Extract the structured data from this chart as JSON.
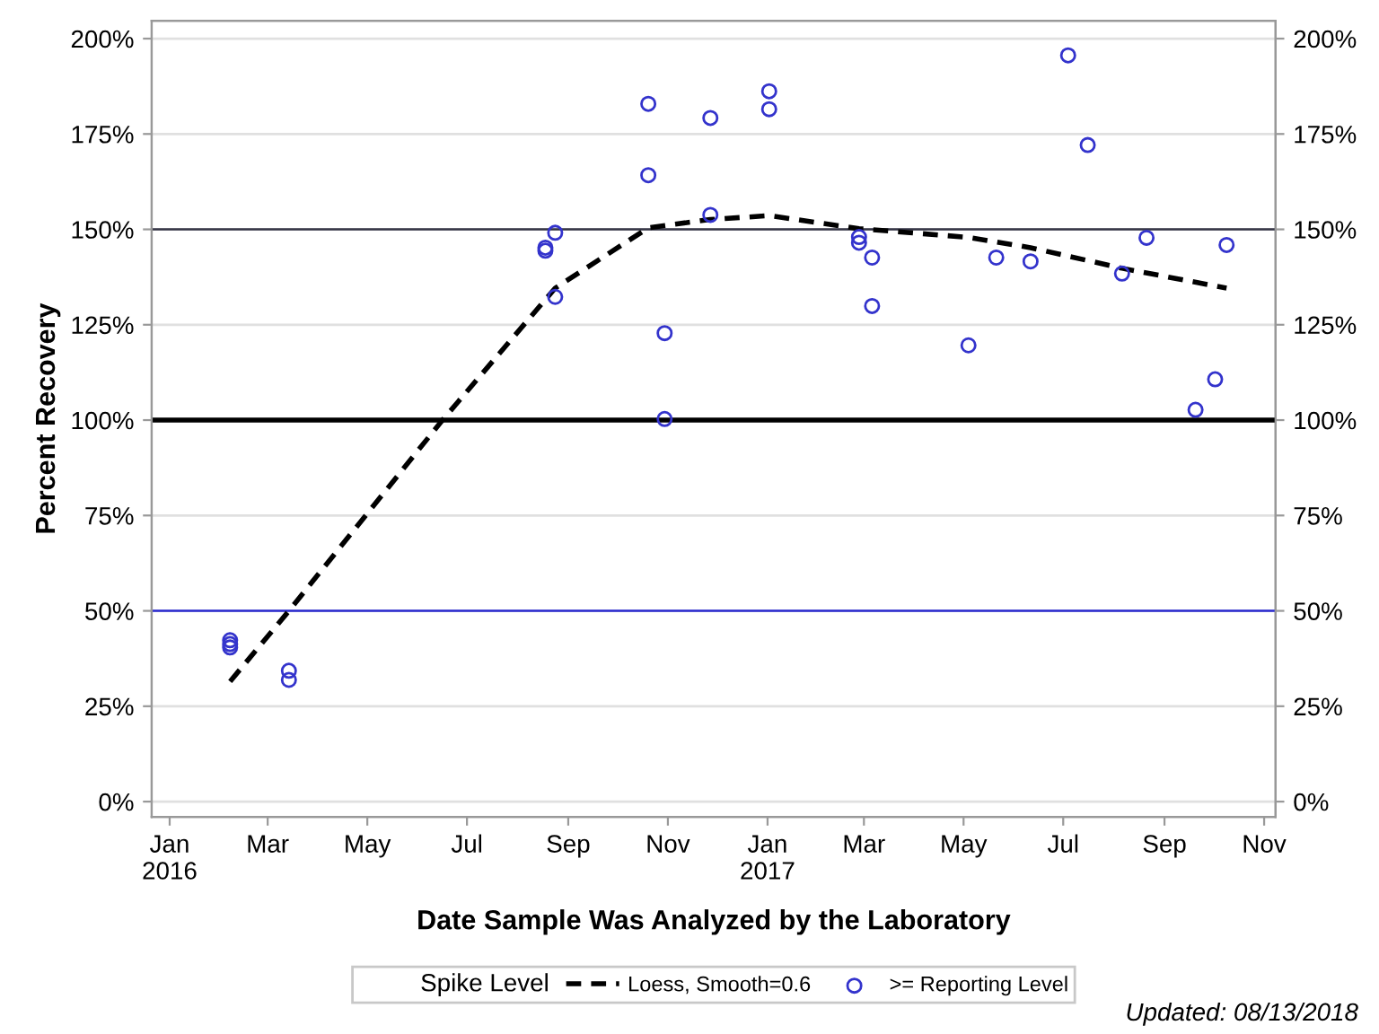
{
  "chart_data": {
    "type": "scatter",
    "xlabel": "Date Sample Was Analyzed by the Laboratory",
    "ylabel": "Percent Recovery",
    "legend_title": "Spike Level",
    "legend": "bottom",
    "grid": "y",
    "xlim": [
      "2015-12-21",
      "2017-11-08"
    ],
    "xticks": [
      {
        "value": "2016-01-01",
        "label": "Jan\n2016"
      },
      {
        "value": "2016-03-01",
        "label": "Mar"
      },
      {
        "value": "2016-05-01",
        "label": "May"
      },
      {
        "value": "2016-07-01",
        "label": "Jul"
      },
      {
        "value": "2016-09-01",
        "label": "Sep"
      },
      {
        "value": "2016-11-01",
        "label": "Nov"
      },
      {
        "value": "2017-01-01",
        "label": "Jan\n2017"
      },
      {
        "value": "2017-03-01",
        "label": "Mar"
      },
      {
        "value": "2017-05-01",
        "label": "May"
      },
      {
        "value": "2017-07-01",
        "label": "Jul"
      },
      {
        "value": "2017-09-01",
        "label": "Sep"
      },
      {
        "value": "2017-11-01",
        "label": "Nov"
      }
    ],
    "ylim": [
      -4,
      204.7
    ],
    "yticks": [
      {
        "value": 0,
        "label": "0%"
      },
      {
        "value": 25,
        "label": "25%"
      },
      {
        "value": 50,
        "label": "50%"
      },
      {
        "value": 75,
        "label": "75%"
      },
      {
        "value": 100,
        "label": "100%"
      },
      {
        "value": 125,
        "label": "125%"
      },
      {
        "value": 150,
        "label": "150%"
      },
      {
        "value": 175,
        "label": "175%"
      },
      {
        "value": 200,
        "label": "200%"
      }
    ],
    "y2lim": [
      -4,
      204.7
    ],
    "y2ticks": [
      {
        "value": 0,
        "label": "0%"
      },
      {
        "value": 25,
        "label": "25%"
      },
      {
        "value": 50,
        "label": "50%"
      },
      {
        "value": 75,
        "label": "75%"
      },
      {
        "value": 100,
        "label": "100%"
      },
      {
        "value": 125,
        "label": "125%"
      },
      {
        "value": 150,
        "label": "150%"
      },
      {
        "value": 175,
        "label": "175%"
      },
      {
        "value": 200,
        "label": "200%"
      }
    ],
    "ref_lines": [
      {
        "axis": "y",
        "value": 50,
        "color": "#2a2ad0"
      },
      {
        "axis": "y",
        "value": 100,
        "color": "#000000"
      },
      {
        "axis": "y",
        "value": 150,
        "color": "#333344"
      }
    ],
    "series": [
      {
        "name": "Loess, Smooth=0.6",
        "type": "line",
        "color": "#000000",
        "line_style": "dashed",
        "marker": "none",
        "x": [
          "2016-02-07",
          "2016-03-14",
          "2016-06-16",
          "2016-08-24",
          "2016-10-20",
          "2016-11-27",
          "2017-01-02",
          "2017-02-26",
          "2017-05-04",
          "2017-06-11",
          "2017-08-06",
          "2017-10-09"
        ],
        "values": [
          31.5,
          50,
          100,
          134.6,
          150.4,
          152.6,
          153.6,
          150.2,
          147.9,
          145.2,
          139.8,
          134.6
        ]
      },
      {
        "name": ">= Reporting Level",
        "color": "#3333cc",
        "marker": "circle",
        "x": [
          "2016-02-07",
          "2016-02-07",
          "2016-02-07",
          "2016-03-14",
          "2016-03-14",
          "2016-08-18",
          "2016-08-18",
          "2016-08-24",
          "2016-08-24",
          "2016-10-20",
          "2016-10-20",
          "2016-10-30",
          "2016-10-30",
          "2016-11-27",
          "2016-11-27",
          "2017-01-02",
          "2017-01-02",
          "2017-02-26",
          "2017-02-26",
          "2017-03-06",
          "2017-03-06",
          "2017-05-04",
          "2017-05-21",
          "2017-06-11",
          "2017-07-04",
          "2017-07-16",
          "2017-08-06",
          "2017-08-21",
          "2017-09-20",
          "2017-10-02",
          "2017-10-09"
        ],
        "values": [
          42.3,
          41.3,
          40.4,
          34.3,
          31.9,
          145.2,
          144.4,
          149.1,
          132.3,
          182.9,
          164.2,
          122.8,
          100.3,
          179.2,
          153.8,
          181.5,
          186.2,
          148.0,
          146.5,
          142.6,
          129.9,
          119.6,
          142.6,
          141.6,
          195.6,
          172.1,
          138.4,
          147.8,
          102.7,
          110.7,
          145.9
        ]
      }
    ],
    "annotations": [
      "Updated: 08/13/2018"
    ]
  }
}
